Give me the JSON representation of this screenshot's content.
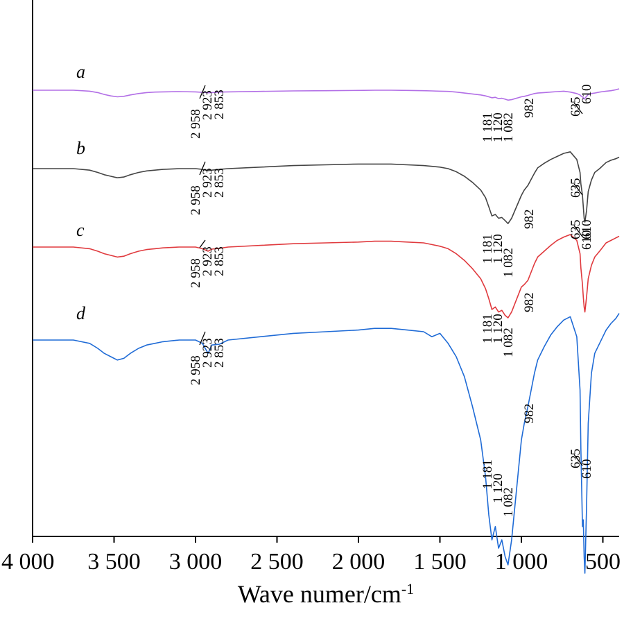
{
  "chart_data": {
    "type": "line",
    "title": "",
    "xlabel": "Wave numer/cm",
    "xlabel_sup": "-1",
    "ylabel": "",
    "xlim": [
      4000,
      400
    ],
    "x_reversed": true,
    "yaxis_ticks": false,
    "grid": false,
    "xticks": [
      {
        "value": 4000,
        "label": "4 000"
      },
      {
        "value": 3500,
        "label": "3 500"
      },
      {
        "value": 3000,
        "label": "3 000"
      },
      {
        "value": 2500,
        "label": "2 500"
      },
      {
        "value": 2000,
        "label": "2 000"
      },
      {
        "value": 1500,
        "label": "1 500"
      },
      {
        "value": 1000,
        "label": "1 000"
      },
      {
        "value": 500,
        "label": "500"
      }
    ],
    "series": [
      {
        "name": "a",
        "label": "a",
        "color": "#b26fe6",
        "offset": 0.0,
        "x": [
          4000,
          3850,
          3750,
          3650,
          3600,
          3560,
          3520,
          3480,
          3440,
          3400,
          3350,
          3300,
          3250,
          3200,
          3100,
          3000,
          2958,
          2923,
          2900,
          2853,
          2800,
          2600,
          2400,
          2200,
          2000,
          1900,
          1800,
          1700,
          1600,
          1550,
          1500,
          1450,
          1400,
          1350,
          1300,
          1250,
          1220,
          1200,
          1181,
          1160,
          1140,
          1120,
          1100,
          1082,
          1060,
          1040,
          1020,
          1000,
          982,
          960,
          940,
          920,
          900,
          860,
          820,
          780,
          740,
          700,
          660,
          640,
          635,
          625,
          620,
          615,
          610,
          600,
          590,
          570,
          550,
          520,
          500,
          480,
          450,
          420,
          400
        ],
        "y": [
          1.0,
          1.0,
          1.0,
          0.98,
          0.95,
          0.91,
          0.88,
          0.86,
          0.87,
          0.9,
          0.93,
          0.95,
          0.96,
          0.965,
          0.97,
          0.965,
          0.955,
          0.945,
          0.95,
          0.96,
          0.965,
          0.975,
          0.985,
          0.99,
          0.995,
          1.0,
          1.0,
          0.995,
          0.99,
          0.985,
          0.98,
          0.975,
          0.96,
          0.94,
          0.92,
          0.9,
          0.88,
          0.86,
          0.84,
          0.85,
          0.82,
          0.83,
          0.81,
          0.79,
          0.8,
          0.82,
          0.84,
          0.86,
          0.87,
          0.89,
          0.91,
          0.93,
          0.94,
          0.95,
          0.96,
          0.97,
          0.98,
          0.96,
          0.93,
          0.9,
          0.88,
          0.86,
          0.84,
          0.81,
          0.83,
          0.87,
          0.91,
          0.93,
          0.94,
          0.96,
          0.97,
          0.98,
          0.99,
          1.01,
          1.03
        ]
      },
      {
        "name": "b",
        "label": "b",
        "color": "#444444",
        "offset": 1.0,
        "x": [
          4000,
          3850,
          3750,
          3650,
          3600,
          3560,
          3520,
          3480,
          3440,
          3400,
          3350,
          3300,
          3250,
          3200,
          3100,
          3000,
          2958,
          2923,
          2900,
          2853,
          2800,
          2600,
          2400,
          2200,
          2000,
          1900,
          1800,
          1700,
          1600,
          1550,
          1500,
          1450,
          1400,
          1350,
          1300,
          1250,
          1220,
          1200,
          1181,
          1160,
          1140,
          1120,
          1100,
          1082,
          1060,
          1040,
          1020,
          1000,
          982,
          960,
          940,
          920,
          900,
          860,
          820,
          780,
          740,
          700,
          660,
          640,
          635,
          625,
          620,
          615,
          610,
          600,
          590,
          570,
          550,
          520,
          500,
          480,
          450,
          420,
          400
        ],
        "y": [
          1.0,
          1.0,
          1.0,
          0.98,
          0.95,
          0.92,
          0.9,
          0.88,
          0.89,
          0.92,
          0.95,
          0.97,
          0.98,
          0.99,
          1.0,
          1.0,
          0.99,
          0.975,
          0.98,
          0.99,
          1.0,
          1.02,
          1.04,
          1.05,
          1.06,
          1.06,
          1.06,
          1.05,
          1.04,
          1.03,
          1.02,
          1.0,
          0.96,
          0.9,
          0.82,
          0.72,
          0.62,
          0.5,
          0.38,
          0.4,
          0.35,
          0.36,
          0.32,
          0.28,
          0.35,
          0.45,
          0.55,
          0.65,
          0.72,
          0.78,
          0.86,
          0.94,
          1.01,
          1.07,
          1.12,
          1.16,
          1.2,
          1.22,
          1.12,
          0.95,
          0.8,
          0.65,
          0.5,
          0.35,
          0.3,
          0.45,
          0.7,
          0.85,
          0.95,
          1.0,
          1.04,
          1.08,
          1.11,
          1.13,
          1.15
        ]
      },
      {
        "name": "c",
        "label": "c",
        "color": "#e03a3e",
        "offset": 2.0,
        "x": [
          4000,
          3850,
          3750,
          3650,
          3600,
          3560,
          3520,
          3480,
          3440,
          3400,
          3350,
          3300,
          3250,
          3200,
          3100,
          3000,
          2958,
          2923,
          2900,
          2853,
          2800,
          2600,
          2400,
          2200,
          2000,
          1900,
          1800,
          1700,
          1600,
          1550,
          1500,
          1450,
          1400,
          1350,
          1300,
          1250,
          1220,
          1200,
          1181,
          1160,
          1140,
          1120,
          1100,
          1082,
          1060,
          1040,
          1020,
          1000,
          982,
          960,
          940,
          920,
          900,
          860,
          820,
          780,
          740,
          700,
          660,
          640,
          635,
          625,
          620,
          615,
          610,
          600,
          590,
          570,
          550,
          520,
          500,
          480,
          450,
          420,
          400
        ],
        "y": [
          1.0,
          1.0,
          1.0,
          0.98,
          0.95,
          0.92,
          0.9,
          0.88,
          0.89,
          0.92,
          0.95,
          0.97,
          0.98,
          0.99,
          1.0,
          1.0,
          0.98,
          0.95,
          0.975,
          0.985,
          1.0,
          1.02,
          1.04,
          1.05,
          1.06,
          1.07,
          1.07,
          1.06,
          1.05,
          1.03,
          1.01,
          0.98,
          0.92,
          0.84,
          0.74,
          0.62,
          0.5,
          0.38,
          0.25,
          0.28,
          0.22,
          0.24,
          0.18,
          0.15,
          0.22,
          0.32,
          0.42,
          0.52,
          0.55,
          0.6,
          0.7,
          0.8,
          0.88,
          0.95,
          1.02,
          1.08,
          1.12,
          1.15,
          1.08,
          0.92,
          0.75,
          0.55,
          0.4,
          0.28,
          0.22,
          0.4,
          0.62,
          0.78,
          0.88,
          0.95,
          1.0,
          1.05,
          1.08,
          1.11,
          1.13
        ]
      },
      {
        "name": "d",
        "label": "d",
        "color": "#1f6bd6",
        "offset": 3.0,
        "x": [
          4000,
          3850,
          3750,
          3650,
          3600,
          3560,
          3520,
          3480,
          3440,
          3400,
          3350,
          3300,
          3250,
          3200,
          3100,
          3000,
          2958,
          2923,
          2900,
          2853,
          2800,
          2600,
          2400,
          2200,
          2000,
          1900,
          1800,
          1700,
          1600,
          1550,
          1500,
          1450,
          1400,
          1350,
          1300,
          1250,
          1220,
          1200,
          1181,
          1160,
          1140,
          1120,
          1100,
          1082,
          1060,
          1040,
          1020,
          1000,
          982,
          960,
          940,
          920,
          900,
          860,
          820,
          780,
          740,
          700,
          660,
          640,
          635,
          625,
          620,
          615,
          610,
          600,
          590,
          570,
          550,
          520,
          500,
          480,
          450,
          420,
          400
        ],
        "y": [
          1.0,
          1.0,
          1.0,
          0.98,
          0.95,
          0.92,
          0.9,
          0.88,
          0.89,
          0.92,
          0.95,
          0.97,
          0.98,
          0.99,
          1.0,
          1.0,
          0.98,
          0.92,
          0.97,
          0.975,
          1.0,
          1.02,
          1.04,
          1.05,
          1.06,
          1.07,
          1.07,
          1.06,
          1.05,
          1.02,
          1.04,
          0.98,
          0.9,
          0.78,
          0.6,
          0.4,
          0.18,
          -0.05,
          -0.2,
          -0.12,
          -0.25,
          -0.2,
          -0.3,
          -0.35,
          -0.2,
          0.0,
          0.2,
          0.4,
          0.5,
          0.6,
          0.7,
          0.8,
          0.88,
          0.96,
          1.03,
          1.08,
          1.12,
          1.14,
          1.02,
          0.7,
          0.35,
          -0.12,
          -0.08,
          -0.3,
          -0.4,
          0.0,
          0.5,
          0.8,
          0.92,
          0.98,
          1.02,
          1.06,
          1.1,
          1.13,
          1.16
        ]
      }
    ],
    "annotations": [
      {
        "series": "a",
        "peaks": [
          "2 958",
          "2 923",
          "2 853",
          "1 181",
          "1 120",
          "1 082",
          "982",
          "635",
          "610"
        ]
      },
      {
        "series": "b",
        "peaks": [
          "2 958",
          "2 923",
          "2 853",
          "1 181",
          "1 120",
          "1 082",
          "982",
          "635",
          "610"
        ]
      },
      {
        "series": "c",
        "peaks": [
          "2 958",
          "2 923",
          "2 853",
          "1 181",
          "1 120",
          "1 082",
          "982",
          "635",
          "610"
        ]
      },
      {
        "series": "d",
        "peaks": [
          "2 958",
          "2 923",
          "2 853",
          "1 181",
          "1 120",
          "1 082",
          "982",
          "635",
          "610"
        ]
      }
    ]
  }
}
